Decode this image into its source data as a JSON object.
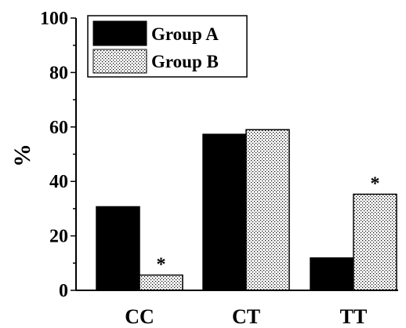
{
  "chart_data": {
    "type": "bar",
    "categories": [
      "CC",
      "CT",
      "TT"
    ],
    "series": [
      {
        "name": "Group A",
        "values": [
          30.7,
          57.3,
          11.9
        ],
        "fill": "solid",
        "color": "#000000"
      },
      {
        "name": "Group B",
        "values": [
          5.6,
          59.0,
          35.3
        ],
        "fill": "dotted",
        "color": "#ffffff"
      }
    ],
    "ylabel": "%",
    "xlabel": "",
    "ylim": [
      0,
      100
    ],
    "yticks": [
      "0",
      "20",
      "40",
      "60",
      "80",
      "100"
    ],
    "grid": false,
    "legend_position": "top-left",
    "annotations": [
      {
        "series": "Group B",
        "category": "CC",
        "text": "*"
      },
      {
        "series": "Group B",
        "category": "TT",
        "text": "*"
      }
    ]
  }
}
